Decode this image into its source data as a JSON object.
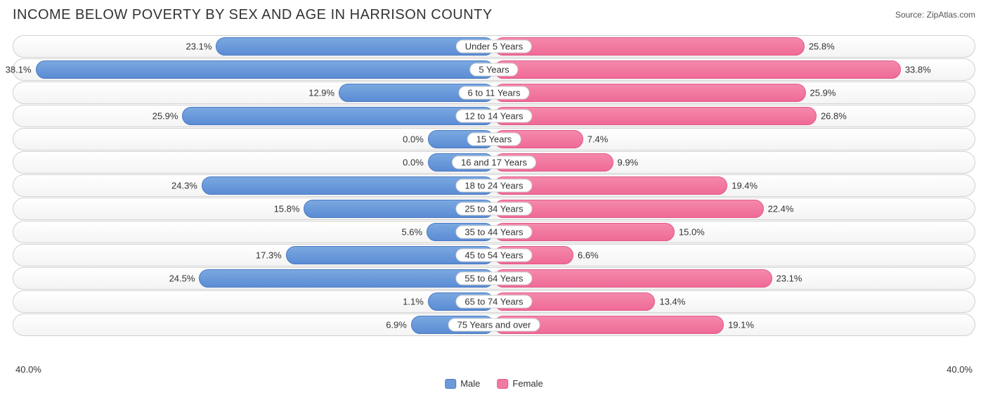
{
  "title": "INCOME BELOW POVERTY BY SEX AND AGE IN HARRISON COUNTY",
  "source": "Source: ZipAtlas.com",
  "axis_max": 40.0,
  "axis_label_left": "40.0%",
  "axis_label_right": "40.0%",
  "legend": {
    "male": "Male",
    "female": "Female"
  },
  "colors": {
    "male_fill_top": "#7aa8e0",
    "male_fill_bottom": "#5b8cd4",
    "male_border": "#4a79c2",
    "female_fill_top": "#f489ab",
    "female_fill_bottom": "#ef6a96",
    "female_border": "#e05a87",
    "row_border": "#d0d0d0",
    "text": "#333333",
    "background": "#ffffff"
  },
  "rows": [
    {
      "label": "Under 5 Years",
      "male": 23.1,
      "female": 25.8
    },
    {
      "label": "5 Years",
      "male": 38.1,
      "female": 33.8
    },
    {
      "label": "6 to 11 Years",
      "male": 12.9,
      "female": 25.9
    },
    {
      "label": "12 to 14 Years",
      "male": 25.9,
      "female": 26.8
    },
    {
      "label": "15 Years",
      "male": 0.0,
      "female": 7.4,
      "male_stub": 5.5
    },
    {
      "label": "16 and 17 Years",
      "male": 0.0,
      "female": 9.9,
      "male_stub": 5.5
    },
    {
      "label": "18 to 24 Years",
      "male": 24.3,
      "female": 19.4
    },
    {
      "label": "25 to 34 Years",
      "male": 15.8,
      "female": 22.4
    },
    {
      "label": "35 to 44 Years",
      "male": 5.6,
      "female": 15.0
    },
    {
      "label": "45 to 54 Years",
      "male": 17.3,
      "female": 6.6
    },
    {
      "label": "55 to 64 Years",
      "male": 24.5,
      "female": 23.1
    },
    {
      "label": "65 to 74 Years",
      "male": 1.1,
      "female": 13.4,
      "male_stub": 5.5
    },
    {
      "label": "75 Years and over",
      "male": 6.9,
      "female": 19.1
    }
  ]
}
